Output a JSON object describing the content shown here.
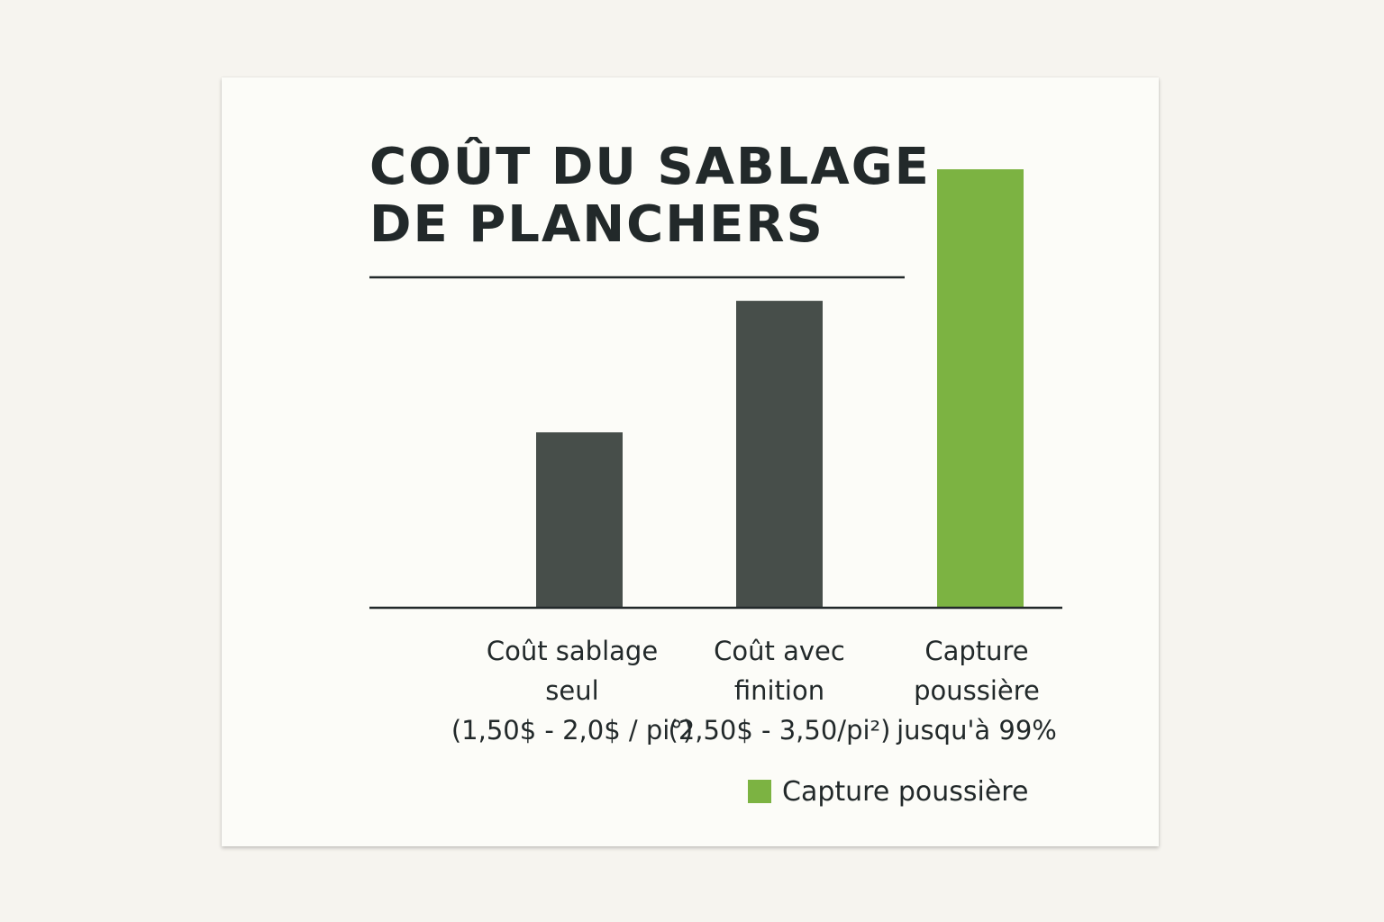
{
  "chart_data": {
    "type": "bar",
    "title_lines": [
      "COÛT DU SABLAGE",
      "DE PLANCHERS"
    ],
    "categories": [
      [
        "Coût sablage",
        "seul",
        "(1,50$ - 2,0$ / pi°)"
      ],
      [
        "Coût avec",
        "finition",
        "(2,50$ - 3,50/pi²)"
      ],
      [
        "Capture",
        "poussière",
        "jusqu'à 99%"
      ]
    ],
    "values": [
      2.0,
      3.5,
      5.0
    ],
    "bar_colors": [
      "#474e4a",
      "#474e4a",
      "#7cb342"
    ],
    "ylim": [
      0,
      5.0
    ],
    "grid": false,
    "legend": {
      "position": "bottom-right",
      "items": [
        {
          "label": "Capture poussière",
          "color": "#7cb342"
        }
      ]
    }
  }
}
